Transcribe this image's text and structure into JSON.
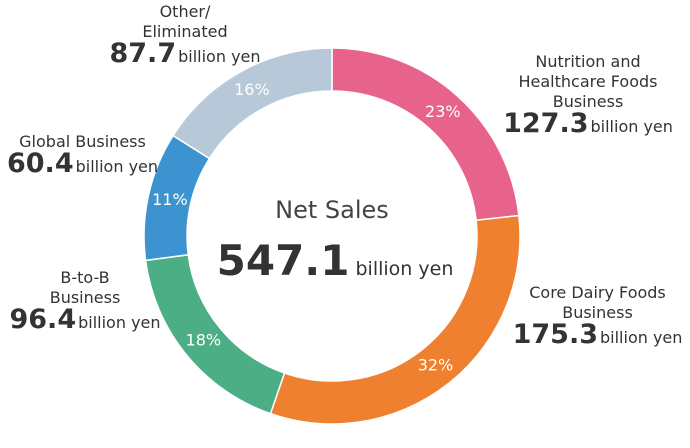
{
  "chart_data": {
    "type": "pie",
    "center": {
      "title": "Net Sales",
      "value": "547.1",
      "unit": "billion yen"
    },
    "unit": "billion yen",
    "slices": [
      {
        "name_lines": [
          "Nutrition and",
          "Healthcare Foods",
          "Business"
        ],
        "value": "127.3",
        "percent": 23,
        "percent_label": "23%",
        "color": "#e8638c"
      },
      {
        "name_lines": [
          "Core Dairy Foods",
          "Business"
        ],
        "value": "175.3",
        "percent": 32,
        "percent_label": "32%",
        "color": "#ee802f"
      },
      {
        "name_lines": [
          "B-to-B",
          "Business"
        ],
        "value": "96.4",
        "percent": 18,
        "percent_label": "18%",
        "color": "#4bae85"
      },
      {
        "name_lines": [
          "Global Business"
        ],
        "value": "60.4",
        "percent": 11,
        "percent_label": "11%",
        "color": "#3d93cf"
      },
      {
        "name_lines": [
          "Other/",
          "Eliminated"
        ],
        "value": "87.7",
        "percent": 16,
        "percent_label": "16%",
        "color": "#b7c9d8"
      }
    ]
  }
}
